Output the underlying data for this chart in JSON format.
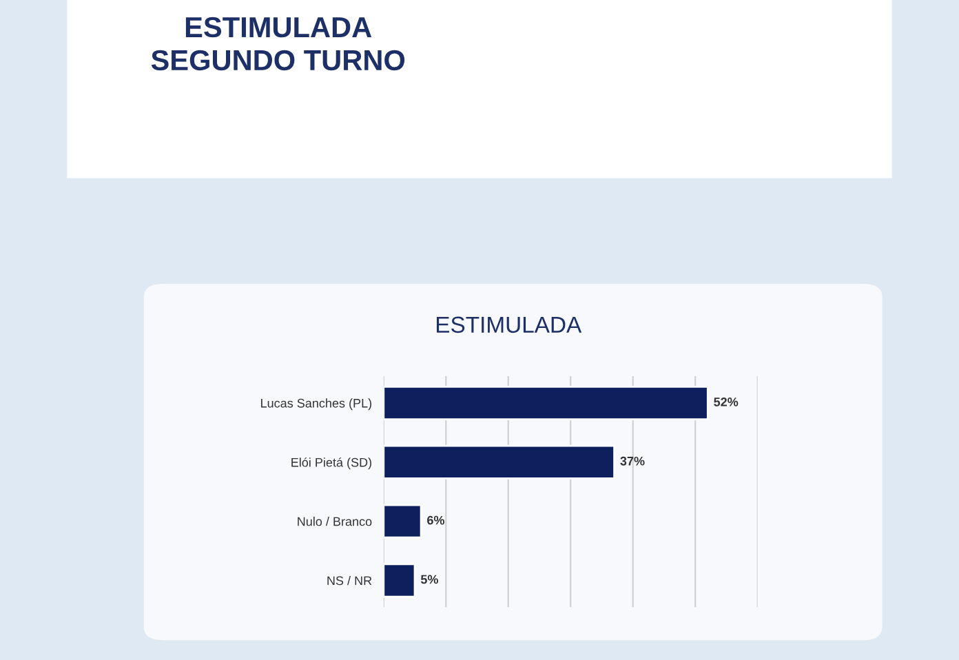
{
  "chart_data": {
    "type": "bar",
    "orientation": "horizontal",
    "title": "ESTIMULADA\nSEGUNDO TURNO",
    "subtitle": "ESTIMULADA",
    "categories": [
      "Lucas Sanches (PL)",
      "Elói Pietá (SD)",
      "Nulo / Branco",
      "NS / NR"
    ],
    "values": [
      52,
      37,
      6,
      5
    ],
    "color": "#0d1f5c",
    "value_labels": [
      "52%",
      "37%",
      "6%",
      "5%"
    ],
    "xlim": [
      0,
      60
    ],
    "xticks": [
      {
        "value": 0,
        "label": null
      },
      {
        "value": 10,
        "label": null
      },
      {
        "value": 20,
        "label": null
      },
      {
        "value": 30,
        "label": null
      },
      {
        "value": 40,
        "label": null
      },
      {
        "value": 50,
        "label": null
      },
      {
        "value": 60,
        "label": null
      }
    ],
    "grid": "x",
    "legend": false
  }
}
